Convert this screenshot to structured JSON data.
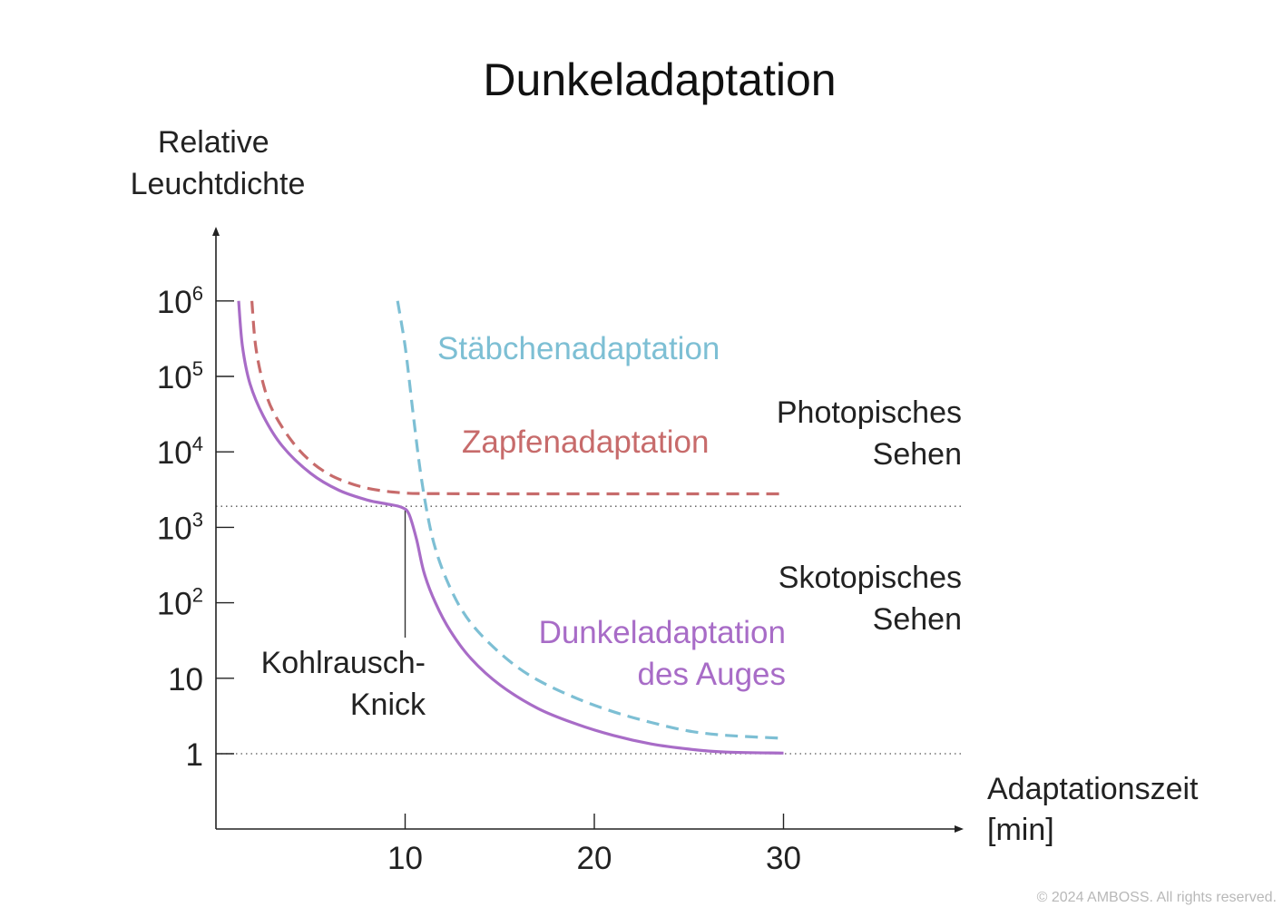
{
  "chart_data": {
    "type": "line",
    "title": "Dunkeladaptation",
    "ylabel": [
      "Relative",
      "Leuchtdichte"
    ],
    "xlabel": [
      "Adaptationszeit",
      "[min]"
    ],
    "y_scale": "log",
    "x_ticks": [
      10,
      20,
      30
    ],
    "y_ticks": [
      {
        "value": 1,
        "label": "1"
      },
      {
        "value": 10,
        "label": "10"
      },
      {
        "value": 100,
        "base": "10",
        "exp": "2"
      },
      {
        "value": 1000,
        "base": "10",
        "exp": "3"
      },
      {
        "value": 10000,
        "base": "10",
        "exp": "4"
      },
      {
        "value": 100000,
        "base": "10",
        "exp": "5"
      },
      {
        "value": 1000000,
        "base": "10",
        "exp": "6"
      }
    ],
    "xlim": [
      0,
      39
    ],
    "ylim": [
      0.1,
      10000000
    ],
    "reference_lines": [
      {
        "y": 1900,
        "style": "dotted"
      },
      {
        "y": 1,
        "style": "dotted"
      }
    ],
    "series": [
      {
        "name": "Stäbchenadaptation",
        "color": "#7dbfd4",
        "dash": true,
        "label_lines": [
          "Stäbchenadaptation"
        ],
        "points": [
          [
            9.6,
            1000000
          ],
          [
            10.0,
            250000
          ],
          [
            10.4,
            36000
          ],
          [
            10.8,
            5600
          ],
          [
            11.2,
            1400
          ],
          [
            11.6,
            520
          ],
          [
            12.2,
            200
          ],
          [
            13.0,
            80
          ],
          [
            14.0,
            38
          ],
          [
            15.5,
            17
          ],
          [
            17.0,
            9.5
          ],
          [
            19.0,
            5.5
          ],
          [
            21.0,
            3.6
          ],
          [
            23.0,
            2.6
          ],
          [
            25.0,
            2.0
          ],
          [
            27.0,
            1.75
          ],
          [
            30.0,
            1.6
          ]
        ]
      },
      {
        "name": "Zapfenadaptation",
        "color": "#c76b6b",
        "dash": true,
        "label_lines": [
          "Zapfenadaptation"
        ],
        "points": [
          [
            1.9,
            1000000
          ],
          [
            2.1,
            250000
          ],
          [
            2.5,
            80000
          ],
          [
            3.0,
            35000
          ],
          [
            4.0,
            14000
          ],
          [
            5.0,
            7500
          ],
          [
            6.0,
            5000
          ],
          [
            7.0,
            3900
          ],
          [
            8.0,
            3300
          ],
          [
            9.0,
            3000
          ],
          [
            10.0,
            2850
          ],
          [
            11.0,
            2800
          ],
          [
            15.0,
            2780
          ],
          [
            20.0,
            2780
          ],
          [
            25.0,
            2780
          ],
          [
            30.0,
            2780
          ]
        ]
      },
      {
        "name": "Dunkeladaptation des Auges",
        "color": "#a86cc7",
        "dash": false,
        "label_lines": [
          "Dunkeladaptation",
          "des Auges"
        ],
        "points": [
          [
            1.2,
            1000000
          ],
          [
            1.4,
            250000
          ],
          [
            1.8,
            80000
          ],
          [
            2.5,
            30000
          ],
          [
            3.5,
            12000
          ],
          [
            5.0,
            5200
          ],
          [
            6.5,
            3100
          ],
          [
            8.0,
            2300
          ],
          [
            9.0,
            2050
          ],
          [
            9.8,
            1850
          ],
          [
            10.2,
            1500
          ],
          [
            10.6,
            700
          ],
          [
            11.0,
            250
          ],
          [
            11.6,
            100
          ],
          [
            12.4,
            42
          ],
          [
            13.5,
            18
          ],
          [
            15.0,
            8.2
          ],
          [
            17.0,
            4.0
          ],
          [
            19.0,
            2.5
          ],
          [
            21.0,
            1.75
          ],
          [
            23.0,
            1.35
          ],
          [
            25.0,
            1.15
          ],
          [
            27.0,
            1.05
          ],
          [
            30.0,
            1.02
          ]
        ]
      }
    ],
    "regions": [
      {
        "lines": [
          "Photopisches",
          "Sehen"
        ]
      },
      {
        "lines": [
          "Skotopisches",
          "Sehen"
        ]
      }
    ],
    "annotations": [
      {
        "lines": [
          "Kohlrausch-",
          "Knick"
        ],
        "x": 10,
        "y": 1900
      }
    ]
  },
  "copyright": "© 2024 AMBOSS. All rights reserved."
}
